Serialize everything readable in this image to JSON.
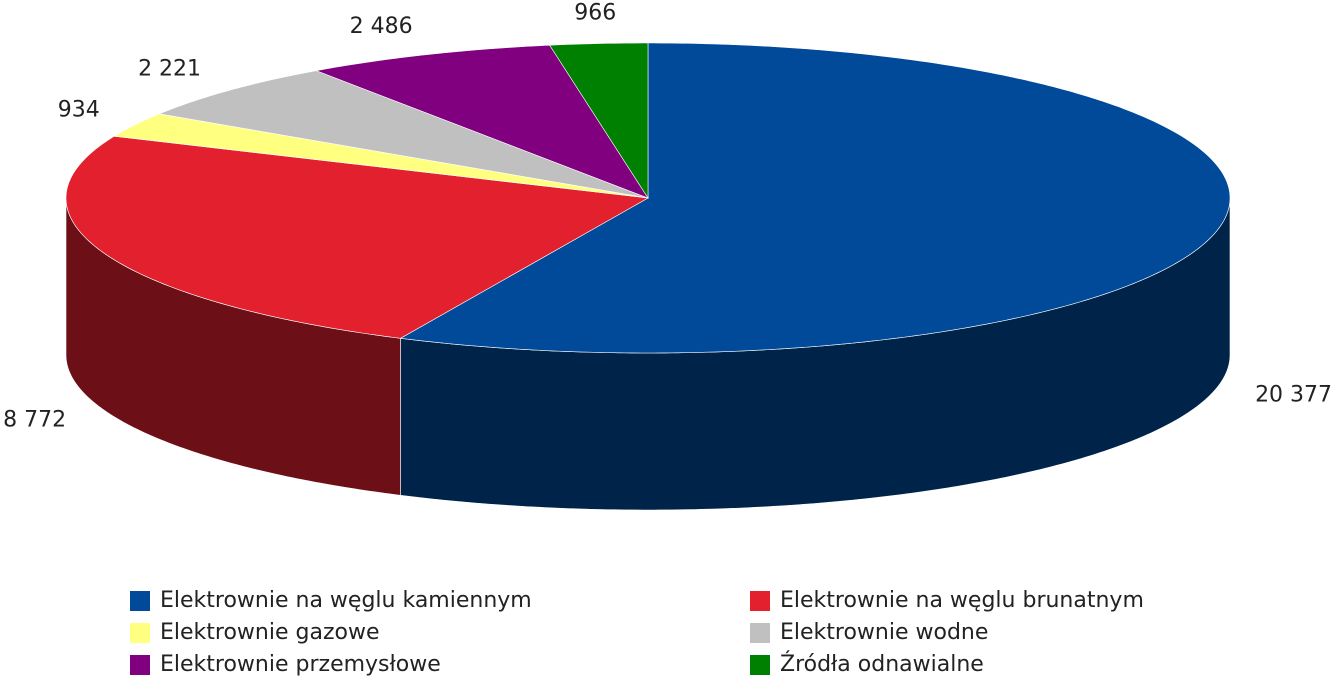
{
  "chart_data": {
    "type": "pie3d",
    "categories": [
      "Elektrownie na węglu kamiennym",
      "Elektrownie na węglu brunatnym",
      "Elektrownie gazowe",
      "Elektrownie wodne",
      "Elektrownie przemysłowe",
      "Źródła odnawialne"
    ],
    "values": [
      20377,
      8772,
      934,
      2221,
      2486,
      966
    ],
    "value_labels": [
      "20 377",
      "8 772",
      "934",
      "2 221",
      "2 486",
      "966"
    ],
    "colors": [
      "#004a99",
      "#e3202d",
      "#ffff80",
      "#c0c0c0",
      "#800080",
      "#008000"
    ]
  }
}
